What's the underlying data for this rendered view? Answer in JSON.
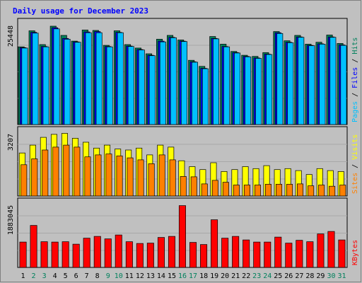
{
  "chart_data": {
    "type": "bar",
    "title": "Daily usage for December 2023",
    "categories": [
      "1",
      "2",
      "3",
      "4",
      "5",
      "6",
      "7",
      "8",
      "9",
      "10",
      "11",
      "12",
      "13",
      "14",
      "15",
      "16",
      "17",
      "18",
      "19",
      "20",
      "21",
      "22",
      "23",
      "24",
      "25",
      "26",
      "27",
      "28",
      "29",
      "30",
      "31"
    ],
    "weekend_days": [
      "2",
      "3",
      "9",
      "10",
      "16",
      "17",
      "23",
      "24",
      "30",
      "31"
    ],
    "grid": true,
    "panels": [
      {
        "name": "hits-files-pages",
        "ymax_label": "25448",
        "ylim": [
          0,
          27000
        ],
        "legend": [
          "Pages",
          "Files",
          "Hits"
        ],
        "series": [
          {
            "name": "Hits",
            "values": [
              20300,
              24500,
              20900,
              25700,
              23300,
              21800,
              24700,
              24600,
              20700,
              24500,
              20900,
              20000,
              18500,
              22300,
              23300,
              22100,
              16800,
              15200,
              23000,
              21000,
              19100,
              18100,
              17800,
              18800,
              24300,
              21900,
              23300,
              21000,
              21500,
              23400,
              21200
            ]
          },
          {
            "name": "Files",
            "values": [
              20100,
              24100,
              20400,
              25300,
              22500,
              21600,
              24200,
              24300,
              20400,
              24100,
              20500,
              19600,
              18100,
              21800,
              22800,
              21800,
              16400,
              14700,
              22500,
              20400,
              18800,
              17800,
              17400,
              18400,
              24000,
              21500,
              22900,
              20700,
              21100,
              22900,
              20800
            ]
          },
          {
            "name": "Pages",
            "values": [
              20000,
              23900,
              20300,
              25000,
              22300,
              21500,
              24000,
              24000,
              20300,
              24000,
              20400,
              19500,
              18000,
              21600,
              22700,
              21700,
              16300,
              14600,
              22400,
              20300,
              18700,
              17700,
              17300,
              18300,
              23800,
              21400,
              22800,
              20600,
              21000,
              22800,
              20700
            ]
          }
        ]
      },
      {
        "name": "visits-sites",
        "ymax_label": "3207",
        "ylim": [
          0,
          3400
        ],
        "legend": [
          "Sites",
          "Visits"
        ],
        "series": [
          {
            "name": "Visits",
            "values": [
              2200,
              2600,
              3000,
              3150,
              3200,
              2950,
              2750,
              2450,
              2600,
              2400,
              2350,
              2450,
              2100,
              2600,
              2500,
              1800,
              1500,
              1350,
              1700,
              1250,
              1350,
              1500,
              1400,
              1550,
              1350,
              1400,
              1300,
              1100,
              1400,
              1300,
              1250
            ]
          },
          {
            "name": "Sites",
            "values": [
              1600,
              1900,
              2350,
              2500,
              2600,
              2500,
              2000,
              2100,
              2150,
              2050,
              1950,
              1850,
              1650,
              2100,
              1850,
              1000,
              980,
              620,
              800,
              700,
              560,
              560,
              560,
              600,
              600,
              600,
              620,
              520,
              560,
              500,
              560
            ]
          }
        ]
      },
      {
        "name": "kbytes",
        "ymax_label": "1883045",
        "ylim": [
          0,
          1883045
        ],
        "legend": [
          "KBytes"
        ],
        "series": [
          {
            "name": "KBytes",
            "values": [
              720000,
              1190000,
              730000,
              720000,
              730000,
              660000,
              830000,
              880000,
              810000,
              920000,
              730000,
              680000,
              690000,
              850000,
              880000,
              1750000,
              710000,
              650000,
              1350000,
              830000,
              880000,
              780000,
              720000,
              720000,
              860000,
              690000,
              770000,
              730000,
              950000,
              1020000,
              780000
            ]
          }
        ]
      }
    ]
  },
  "colors": {
    "background": "#c0c0c0",
    "title": "#0000ff",
    "hits": "#00805c",
    "files": "#0000ff",
    "pages": "#00c0ff",
    "visits": "#ffff00",
    "sites": "#ff8000",
    "kbytes": "#ff0000",
    "weekday_label": "#000000",
    "weekend_label": "#00805c"
  }
}
